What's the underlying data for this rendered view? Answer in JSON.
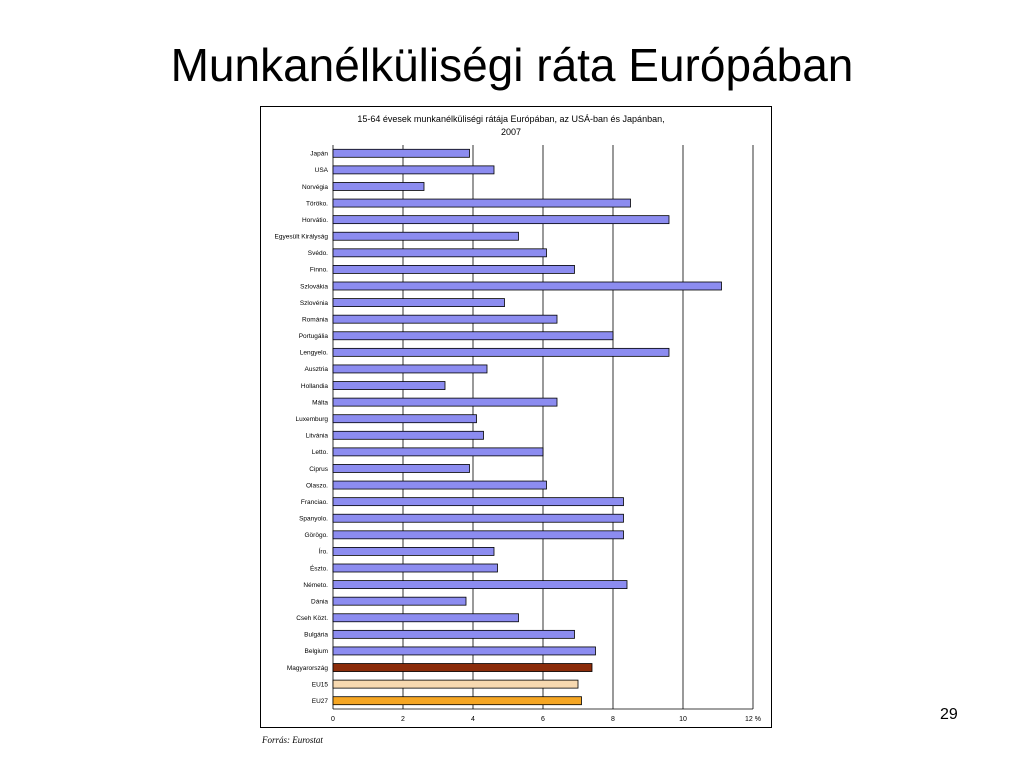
{
  "slide": {
    "title": "Munkanélküliségi ráta Európában",
    "page_number": "29",
    "source": "Forrás: Eurostat"
  },
  "colors": {
    "default_bar": "#8c8cf0",
    "highlight_bar": "#8b2c0a",
    "eu15_bar": "#f7d9b0",
    "eu27_bar": "#f5a623"
  },
  "chart_data": {
    "type": "bar",
    "orientation": "horizontal",
    "title": "15-64 évesek munkanélküliségi rátája Európában, az USÁ-ban és Japánban, 2007",
    "title_lines": [
      "15-64 évesek munkanélküliségi rátája Európában, az USÁ-ban és Japánban,",
      "2007"
    ],
    "categories": [
      "Japán",
      "USA",
      "Norvégia",
      "Töröko.",
      "Horvátio.",
      "Egyesült Királyság",
      "Svédo.",
      "Finno.",
      "Szlovákia",
      "Szlovénia",
      "Románia",
      "Portugália",
      "Lengyelo.",
      "Ausztria",
      "Hollandia",
      "Málta",
      "Luxemburg",
      "Litvánia",
      "Letto.",
      "Ciprus",
      "Olaszo.",
      "Franciao.",
      "Spanyolo.",
      "Görögo.",
      "Íro.",
      "Észto.",
      "Németo.",
      "Dánia",
      "Cseh Közt.",
      "Bulgária",
      "Belgium",
      "Magyarország",
      "EU15",
      "EU27"
    ],
    "values": [
      3.9,
      4.6,
      2.6,
      8.5,
      9.6,
      5.3,
      6.1,
      6.9,
      11.1,
      4.9,
      6.4,
      8.0,
      9.6,
      4.4,
      3.2,
      6.4,
      4.1,
      4.3,
      6.0,
      3.9,
      6.1,
      8.3,
      8.3,
      8.3,
      4.6,
      4.7,
      8.4,
      3.8,
      5.3,
      6.9,
      7.5,
      7.4,
      7.0,
      7.1
    ],
    "bar_colors": [
      "#8c8cf0",
      "#8c8cf0",
      "#8c8cf0",
      "#8c8cf0",
      "#8c8cf0",
      "#8c8cf0",
      "#8c8cf0",
      "#8c8cf0",
      "#8c8cf0",
      "#8c8cf0",
      "#8c8cf0",
      "#8c8cf0",
      "#8c8cf0",
      "#8c8cf0",
      "#8c8cf0",
      "#8c8cf0",
      "#8c8cf0",
      "#8c8cf0",
      "#8c8cf0",
      "#8c8cf0",
      "#8c8cf0",
      "#8c8cf0",
      "#8c8cf0",
      "#8c8cf0",
      "#8c8cf0",
      "#8c8cf0",
      "#8c8cf0",
      "#8c8cf0",
      "#8c8cf0",
      "#8c8cf0",
      "#8c8cf0",
      "#8b2c0a",
      "#f7d9b0",
      "#f5a623"
    ],
    "xticks": [
      "0",
      "2",
      "4",
      "6",
      "8",
      "10",
      "12 %"
    ],
    "xlim": [
      0,
      12
    ],
    "grid": true
  }
}
